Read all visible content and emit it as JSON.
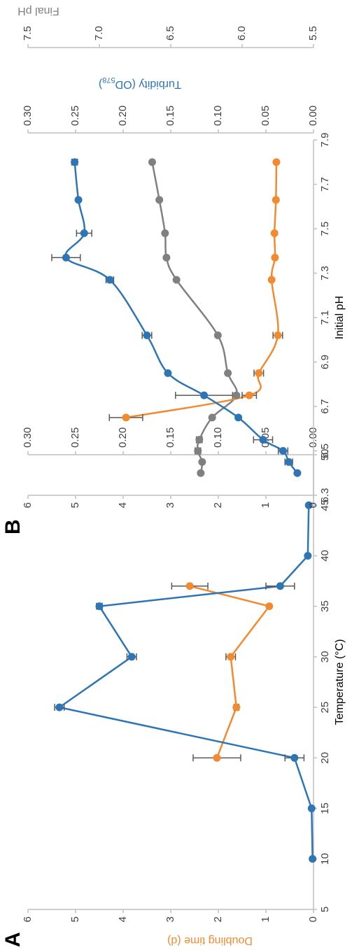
{
  "chart_data": [
    {
      "type": "line",
      "label": "A",
      "x_label": "Temperature (°C)",
      "y_label": "Doubling time (d)",
      "x": [
        10,
        15,
        20,
        25,
        30,
        35,
        37,
        40,
        45
      ],
      "xlim": [
        5,
        50
      ],
      "xticks": [
        5,
        10,
        15,
        20,
        25,
        30,
        35,
        40,
        45,
        50
      ],
      "ylim": [
        0,
        6
      ],
      "yticks": [
        0,
        1,
        2,
        3,
        4,
        5,
        6
      ],
      "y2lim": [
        0,
        0.3
      ],
      "y2ticks": [
        {
          "value": 0,
          "label": "0.00"
        },
        0.05,
        {
          "value": 0.1,
          "label": "0.10"
        },
        0.15,
        {
          "value": 0.2,
          "label": "0.20"
        },
        0.25,
        {
          "value": 0.3,
          "label": "0.30"
        }
      ],
      "series": [
        {
          "color": "#f28a30",
          "axis": "y",
          "values": [
            null,
            null,
            2.03,
            1.62,
            1.74,
            0.93,
            2.6,
            null,
            null
          ],
          "errors": [
            null,
            null,
            0.5,
            0.05,
            0.1,
            null,
            0.38,
            null,
            null
          ]
        },
        {
          "color": "#2e75b6",
          "axis": "y2",
          "values": [
            0.001,
            0.002,
            0.02,
            0.267,
            0.191,
            0.225,
            0.035,
            0.006,
            0.005
          ],
          "errors": [
            null,
            null,
            0.01,
            0.005,
            0.005,
            0.003,
            0.015,
            null,
            null
          ]
        }
      ]
    },
    {
      "type": "line",
      "label": "B",
      "smooth": true,
      "x_label": "Initial pH",
      "y2_label": [
        "Turbidity (OD",
        "578",
        ")"
      ],
      "y3_label": "Final pH",
      "x": [
        6.4,
        6.45,
        6.5,
        6.55,
        6.65,
        6.75,
        6.85,
        7.02,
        7.27,
        7.37,
        7.48,
        7.63,
        7.8
      ],
      "xlim": [
        6.3,
        7.9
      ],
      "xticks": [
        6.3,
        6.5,
        6.7,
        6.9,
        7.1,
        7.3,
        7.5,
        7.7,
        7.9
      ],
      "ylim": [
        0,
        6
      ],
      "yticks": [
        0,
        1,
        2,
        3,
        4,
        5,
        6
      ],
      "y2lim": [
        0,
        0.3
      ],
      "y2ticks": [
        {
          "value": 0,
          "label": "0.00"
        },
        0.05,
        {
          "value": 0.1,
          "label": "0.10"
        },
        0.15,
        {
          "value": 0.2,
          "label": "0.20"
        },
        0.25,
        {
          "value": 0.3,
          "label": "0.30"
        }
      ],
      "y3lim": [
        5.5,
        7.5
      ],
      "y3ticks": [
        5.5,
        {
          "value": 6,
          "label": "6.0"
        },
        6.5,
        {
          "value": 7,
          "label": "7.0"
        },
        7.5
      ],
      "series": [
        {
          "color": "#808080",
          "axis": "y3",
          "values": [
            6.29,
            6.28,
            6.31,
            6.3,
            6.21,
            6.04,
            6.1,
            6.17,
            6.46,
            6.53,
            6.54,
            6.58,
            6.63
          ],
          "errors": [
            null,
            null,
            0.02,
            0.02,
            null,
            null,
            null,
            null,
            null,
            null,
            null,
            null,
            null
          ]
        },
        {
          "color": "#f28a30",
          "axis": "y",
          "values": [
            null,
            null,
            null,
            null,
            3.94,
            1.35,
            1.15,
            0.75,
            0.88,
            0.81,
            0.82,
            0.79,
            0.78
          ],
          "errors": [
            null,
            null,
            null,
            null,
            0.35,
            0.15,
            0.1,
            0.1,
            null,
            null,
            null,
            null,
            null
          ]
        },
        {
          "color": "#2e75b6",
          "axis": "y2",
          "values": [
            0.017,
            0.026,
            0.032,
            0.053,
            0.079,
            0.115,
            0.153,
            0.175,
            0.214,
            0.26,
            0.241,
            0.247,
            0.251
          ],
          "errors": [
            null,
            0.004,
            0.005,
            0.01,
            null,
            0.03,
            null,
            0.005,
            0.004,
            0.015,
            0.008,
            null,
            0.003
          ]
        }
      ]
    }
  ]
}
